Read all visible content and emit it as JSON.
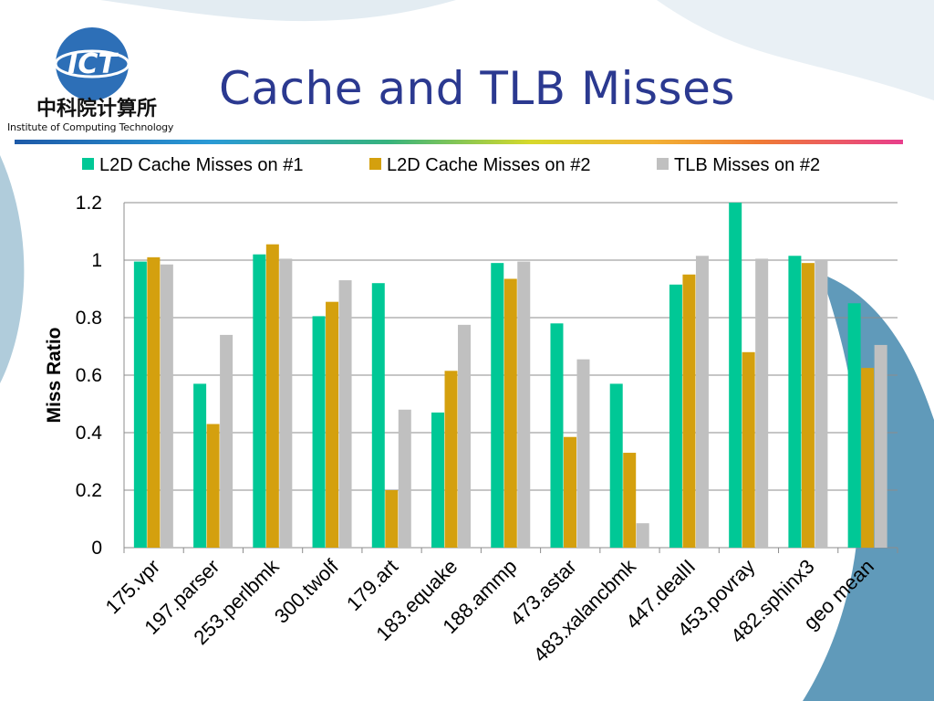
{
  "slide": {
    "title": "Cache and TLB Misses",
    "logo_caption": "Institute of Computing Technology",
    "logo_text": "ICT",
    "logo_chinese": "中科院计算所"
  },
  "colors": {
    "title": "#2b3990",
    "series": [
      "#00c896",
      "#d4a00e",
      "#c0c0c0"
    ],
    "gridline": "#8c8c8c",
    "background_accent": "#4f8fb3"
  },
  "chart_data": {
    "type": "bar",
    "title": "",
    "xlabel": "",
    "ylabel": "Miss Ratio",
    "ylim": [
      0,
      1.2
    ],
    "yticks": [
      "0",
      "0.2",
      "0.4",
      "0.6",
      "0.8",
      "1",
      "1.2"
    ],
    "ytick_values": [
      0,
      0.2,
      0.4,
      0.6,
      0.8,
      1.0,
      1.2
    ],
    "grid": true,
    "legend_position": "top",
    "categories": [
      "175.vpr",
      "197.parser",
      "253.perlbmk",
      "300.twolf",
      "179.art",
      "183.equake",
      "188.ammp",
      "473.astar",
      "483.xalancbmk",
      "447.dealII",
      "453.povray",
      "482.sphinx3",
      "geo mean"
    ],
    "series": [
      {
        "name": "L2D Cache Misses on #1",
        "values": [
          0.995,
          0.57,
          1.02,
          0.805,
          0.92,
          0.47,
          0.99,
          0.78,
          0.57,
          0.915,
          1.2,
          1.015,
          0.85
        ]
      },
      {
        "name": "L2D Cache Misses on #2",
        "values": [
          1.01,
          0.43,
          1.055,
          0.855,
          0.2,
          0.615,
          0.935,
          0.385,
          0.33,
          0.95,
          0.68,
          0.99,
          0.625
        ]
      },
      {
        "name": "TLB Misses on #2",
        "values": [
          0.985,
          0.74,
          1.005,
          0.93,
          0.48,
          0.775,
          0.995,
          0.655,
          0.085,
          1.015,
          1.005,
          1.0,
          0.705
        ]
      }
    ]
  }
}
